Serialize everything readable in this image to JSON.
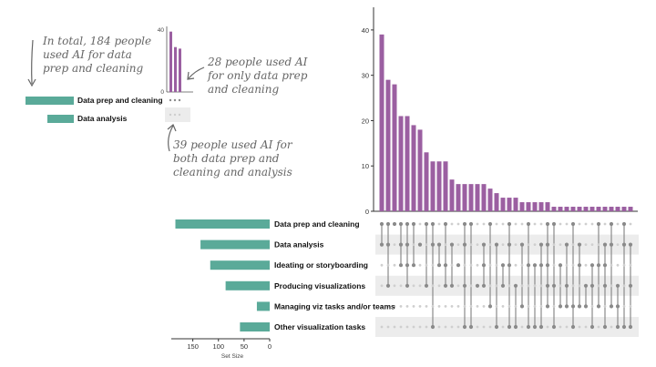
{
  "colors": {
    "bar_purple": "#9b5fa1",
    "set_teal": "#5aaa99",
    "dot_active": "#8a8a8a",
    "dot_inactive": "#cfcfcf",
    "stripe": "#ececec",
    "annotation_gray": "#666666"
  },
  "annotations": {
    "total": [
      "In total, 184 people",
      "used AI for data",
      "prep and cleaning"
    ],
    "only": [
      "28 people used AI",
      "for only data prep",
      "and cleaning"
    ],
    "only_emphasis": "only",
    "both": [
      "39 people used AI for",
      "both data prep and",
      "cleaning and analysis"
    ],
    "both_emphasis": "both",
    "and_emphasis": "and"
  },
  "inset": {
    "categories": [
      "Data prep and cleaning",
      "Data analysis"
    ],
    "y_tick_top": "40",
    "y_tick_zero": "0"
  },
  "chart_data": [
    {
      "type": "bar",
      "subtype": "upset-intersection-sizes",
      "title": "",
      "ylabel": "",
      "ylim": [
        0,
        45
      ],
      "yticks": [
        0,
        10,
        20,
        30,
        40
      ],
      "grid": false,
      "values": [
        39,
        29,
        28,
        21,
        21,
        19,
        18,
        13,
        11,
        11,
        11,
        7,
        6,
        6,
        6,
        6,
        6,
        5,
        4,
        3,
        3,
        3,
        2,
        2,
        2,
        2,
        2,
        1,
        1,
        1,
        1,
        1,
        1,
        1,
        1,
        1,
        1,
        1,
        1,
        1
      ]
    },
    {
      "type": "bar",
      "subtype": "upset-set-sizes",
      "orientation": "horizontal",
      "xlabel": "Set Size",
      "xticks": [
        150,
        100,
        50,
        0
      ],
      "categories": [
        "Data prep and cleaning",
        "Data analysis",
        "Ideating or storyboarding",
        "Producing visualizations",
        "Managing viz tasks and/or teams",
        "Other visualization tasks"
      ],
      "values": [
        184,
        135,
        116,
        86,
        25,
        58
      ]
    }
  ]
}
